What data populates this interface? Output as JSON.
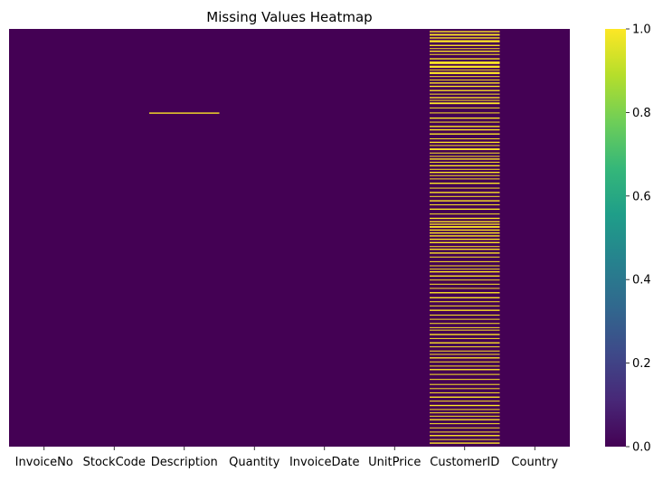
{
  "chart_data": {
    "type": "heatmap",
    "title": "Missing Values Heatmap",
    "xlabel": "",
    "ylabel": "",
    "columns": [
      "InvoiceNo",
      "StockCode",
      "Description",
      "Quantity",
      "InvoiceDate",
      "UnitPrice",
      "CustomerID",
      "Country"
    ],
    "value_range": [
      0,
      1
    ],
    "colormap": "viridis",
    "colors": {
      "min": "#440154",
      "max": "#fde725",
      "stops": [
        "#440154",
        "#482878",
        "#3e4989",
        "#31688e",
        "#26828e",
        "#1f9e89",
        "#35b779",
        "#6ece58",
        "#b5de2b",
        "#fde725"
      ]
    },
    "colorbar": {
      "ticks": [
        0.0,
        0.2,
        0.4,
        0.6,
        0.8,
        1.0
      ],
      "tick_labels": [
        "0.0",
        "0.2",
        "0.4",
        "0.6",
        "0.8",
        "1.0"
      ]
    },
    "missing_bands": [
      {
        "column": "Description",
        "ranges": [
          [
            0.2,
            0.203
          ]
        ]
      },
      {
        "column": "CustomerID",
        "ranges": [
          [
            0.005,
            0.008
          ],
          [
            0.012,
            0.016
          ],
          [
            0.02,
            0.023
          ],
          [
            0.027,
            0.032
          ],
          [
            0.038,
            0.041
          ],
          [
            0.046,
            0.048
          ],
          [
            0.052,
            0.055
          ],
          [
            0.06,
            0.062
          ],
          [
            0.07,
            0.073
          ],
          [
            0.078,
            0.084
          ],
          [
            0.088,
            0.093
          ],
          [
            0.097,
            0.099
          ],
          [
            0.103,
            0.108
          ],
          [
            0.113,
            0.115
          ],
          [
            0.121,
            0.123
          ],
          [
            0.128,
            0.131
          ],
          [
            0.136,
            0.139
          ],
          [
            0.146,
            0.149
          ],
          [
            0.155,
            0.157
          ],
          [
            0.163,
            0.166
          ],
          [
            0.17,
            0.172
          ],
          [
            0.176,
            0.18
          ],
          [
            0.188,
            0.19
          ],
          [
            0.2,
            0.202
          ],
          [
            0.212,
            0.215
          ],
          [
            0.222,
            0.224
          ],
          [
            0.232,
            0.235
          ],
          [
            0.24,
            0.243
          ],
          [
            0.25,
            0.253
          ],
          [
            0.262,
            0.264
          ],
          [
            0.27,
            0.273
          ],
          [
            0.278,
            0.28
          ],
          [
            0.286,
            0.29
          ],
          [
            0.296,
            0.298
          ],
          [
            0.304,
            0.306
          ],
          [
            0.31,
            0.313
          ],
          [
            0.318,
            0.32
          ],
          [
            0.326,
            0.329
          ],
          [
            0.335,
            0.337
          ],
          [
            0.342,
            0.345
          ],
          [
            0.35,
            0.352
          ],
          [
            0.358,
            0.36
          ],
          [
            0.368,
            0.371
          ],
          [
            0.38,
            0.382
          ],
          [
            0.39,
            0.393
          ],
          [
            0.4,
            0.402
          ],
          [
            0.41,
            0.413
          ],
          [
            0.42,
            0.422
          ],
          [
            0.43,
            0.433
          ],
          [
            0.442,
            0.444
          ],
          [
            0.452,
            0.455
          ],
          [
            0.46,
            0.463
          ],
          [
            0.466,
            0.469
          ],
          [
            0.472,
            0.476
          ],
          [
            0.48,
            0.483
          ],
          [
            0.487,
            0.49
          ],
          [
            0.494,
            0.497
          ],
          [
            0.502,
            0.505
          ],
          [
            0.51,
            0.513
          ],
          [
            0.52,
            0.522
          ],
          [
            0.526,
            0.529
          ],
          [
            0.535,
            0.538
          ],
          [
            0.545,
            0.547
          ],
          [
            0.556,
            0.558
          ],
          [
            0.566,
            0.568
          ],
          [
            0.574,
            0.576
          ],
          [
            0.58,
            0.583
          ],
          [
            0.59,
            0.593
          ],
          [
            0.6,
            0.602
          ],
          [
            0.61,
            0.612
          ],
          [
            0.62,
            0.622
          ],
          [
            0.63,
            0.633
          ],
          [
            0.642,
            0.645
          ],
          [
            0.652,
            0.654
          ],
          [
            0.662,
            0.664
          ],
          [
            0.672,
            0.675
          ],
          [
            0.684,
            0.686
          ],
          [
            0.694,
            0.696
          ],
          [
            0.704,
            0.706
          ],
          [
            0.714,
            0.716
          ],
          [
            0.72,
            0.722
          ],
          [
            0.73,
            0.733
          ],
          [
            0.74,
            0.742
          ],
          [
            0.75,
            0.753
          ],
          [
            0.76,
            0.762
          ],
          [
            0.77,
            0.772
          ],
          [
            0.778,
            0.78
          ],
          [
            0.786,
            0.789
          ],
          [
            0.796,
            0.798
          ],
          [
            0.806,
            0.808
          ],
          [
            0.814,
            0.817
          ],
          [
            0.826,
            0.828
          ],
          [
            0.838,
            0.84
          ],
          [
            0.85,
            0.852
          ],
          [
            0.86,
            0.862
          ],
          [
            0.87,
            0.872
          ],
          [
            0.88,
            0.883
          ],
          [
            0.89,
            0.892
          ],
          [
            0.9,
            0.903
          ],
          [
            0.91,
            0.912
          ],
          [
            0.918,
            0.92
          ],
          [
            0.926,
            0.928
          ],
          [
            0.934,
            0.937
          ],
          [
            0.944,
            0.946
          ],
          [
            0.954,
            0.956
          ],
          [
            0.964,
            0.966
          ],
          [
            0.972,
            0.975
          ],
          [
            0.982,
            0.984
          ],
          [
            0.99,
            0.993
          ]
        ]
      }
    ]
  }
}
